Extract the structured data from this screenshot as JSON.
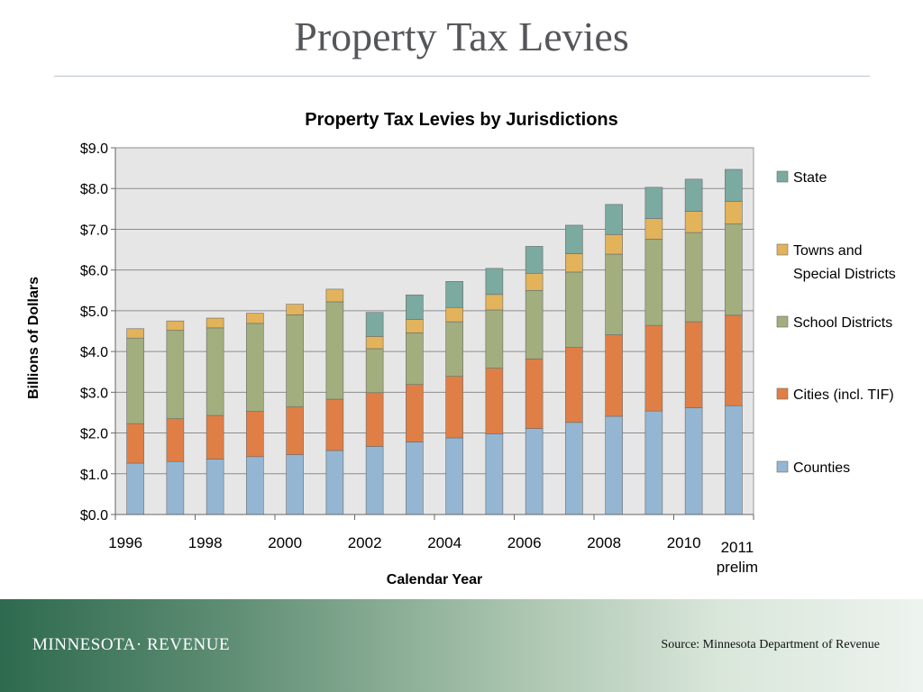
{
  "slide": {
    "title": "Property Tax Levies"
  },
  "footer": {
    "logo_text": "MINNESOTA· REVENUE",
    "source": "Source:  Minnesota Department of Revenue"
  },
  "colors": {
    "Counties": "#94b6d3",
    "Cities (incl. TIF)": "#e07f45",
    "School Districts": "#a2ae7d",
    "Towns and Special Districts": "#e2b35a",
    "State": "#7aaaa0",
    "plot_background": "#e6e6e6"
  },
  "chart_data": {
    "type": "bar",
    "stacked": true,
    "title": "Property Tax Levies by Jurisdictions",
    "xlabel": "Calendar Year",
    "ylabel": "Billions of Dollars",
    "ylim": [
      0,
      9
    ],
    "yticks": [
      "$0.0",
      "$1.0",
      "$2.0",
      "$3.0",
      "$4.0",
      "$5.0",
      "$6.0",
      "$7.0",
      "$8.0",
      "$9.0"
    ],
    "grid": true,
    "legend_position": "right",
    "categories": [
      "1996",
      "1997",
      "1998",
      "1999",
      "2000",
      "2001",
      "2002",
      "2003",
      "2004",
      "2005",
      "2006",
      "2007",
      "2008",
      "2009",
      "2010",
      "2011 prelim"
    ],
    "shown_tick_labels": [
      "1996",
      "1998",
      "2000",
      "2002",
      "2004",
      "2006",
      "2008",
      "2010",
      "2011 prelim"
    ],
    "series": [
      {
        "name": "Counties",
        "values": [
          1.26,
          1.3,
          1.36,
          1.42,
          1.47,
          1.57,
          1.67,
          1.78,
          1.88,
          1.98,
          2.11,
          2.26,
          2.41,
          2.54,
          2.62,
          2.67
        ]
      },
      {
        "name": "Cities (incl. TIF)",
        "values": [
          0.97,
          1.05,
          1.07,
          1.11,
          1.17,
          1.26,
          1.32,
          1.41,
          1.51,
          1.61,
          1.71,
          1.84,
          2.0,
          2.1,
          2.11,
          2.22
        ]
      },
      {
        "name": "School Districts",
        "values": [
          2.1,
          2.17,
          2.15,
          2.16,
          2.26,
          2.39,
          1.08,
          1.27,
          1.34,
          1.43,
          1.68,
          1.85,
          1.98,
          2.12,
          2.19,
          2.24
        ]
      },
      {
        "name": "Towns and Special Districts",
        "values": [
          0.23,
          0.23,
          0.24,
          0.25,
          0.26,
          0.31,
          0.3,
          0.33,
          0.35,
          0.38,
          0.42,
          0.45,
          0.48,
          0.5,
          0.52,
          0.55
        ]
      },
      {
        "name": "State",
        "values": [
          0,
          0,
          0,
          0,
          0,
          0,
          0.59,
          0.6,
          0.64,
          0.64,
          0.66,
          0.7,
          0.74,
          0.77,
          0.79,
          0.79
        ]
      }
    ]
  }
}
